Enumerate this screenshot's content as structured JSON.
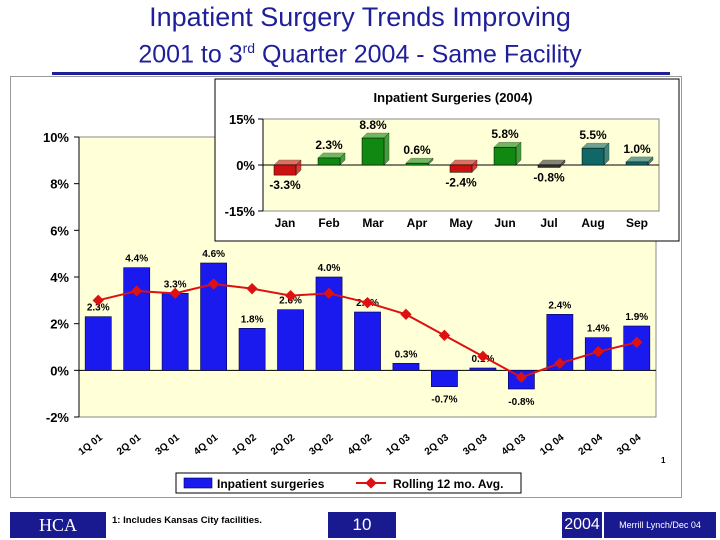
{
  "page": {
    "title": "Inpatient Surgery Trends Improving",
    "subtitle_pre": "2001 to 3",
    "subtitle_sup": "rd",
    "subtitle_post": " Quarter 2004 - Same Facility",
    "footnote": "1: Includes Kansas City facilities.",
    "footnote_marker": "1",
    "logo_text": "HCA",
    "page_number": "10",
    "year": "2004",
    "source": "Merrill Lynch/Dec 04"
  },
  "colors": {
    "title": "#1f1f9a",
    "bar": "#1a1aee",
    "line": "#dd1111",
    "plot_bg": "#ffffd8",
    "inset_red": "#cc1111",
    "inset_green": "#118811",
    "inset_teal": "#116666",
    "inset_dark": "#333333"
  },
  "chart_data": [
    {
      "type": "bar",
      "title": "",
      "categories": [
        "1Q 01",
        "2Q 01",
        "3Q 01",
        "4Q 01",
        "1Q 02",
        "2Q 02",
        "3Q 02",
        "4Q 02",
        "1Q 03",
        "2Q 03",
        "3Q 03",
        "4Q 03",
        "1Q 04",
        "2Q 04",
        "3Q 04"
      ],
      "series": [
        {
          "name": "Inpatient surgeries",
          "type": "bar",
          "values": [
            2.3,
            4.4,
            3.3,
            4.6,
            1.8,
            2.6,
            4.0,
            2.5,
            0.3,
            -0.7,
            0.1,
            -0.8,
            2.4,
            1.4,
            1.9
          ],
          "labels": [
            "2.3%",
            "4.4%",
            "3.3%",
            "4.6%",
            "1.8%",
            "2.6%",
            "4.0%",
            "2.5%",
            "0.3%",
            "-0.7%",
            "0.1%",
            "-0.8%",
            "2.4%",
            "1.4%",
            "1.9%"
          ]
        },
        {
          "name": "Rolling 12 mo. Avg.",
          "type": "line",
          "values": [
            3.0,
            3.4,
            3.3,
            3.7,
            3.5,
            3.2,
            3.3,
            2.9,
            2.4,
            1.5,
            0.6,
            -0.3,
            0.3,
            0.8,
            1.2
          ]
        }
      ],
      "yticks": [
        "10%",
        "8%",
        "6%",
        "4%",
        "2%",
        "0%",
        "-2%"
      ],
      "ylim": [
        -2,
        10
      ],
      "legend": "bottom"
    },
    {
      "type": "bar",
      "title": "Inpatient Surgeries (2004)",
      "categories": [
        "Jan",
        "Feb",
        "Mar",
        "Apr",
        "May",
        "Jun",
        "Jul",
        "Aug",
        "Sep"
      ],
      "values": [
        -3.3,
        2.3,
        8.8,
        0.6,
        -2.4,
        5.8,
        -0.8,
        5.5,
        1.0
      ],
      "labels": [
        "-3.3%",
        "2.3%",
        "8.8%",
        "0.6%",
        "-2.4%",
        "5.8%",
        "-0.8%",
        "5.5%",
        "1.0%"
      ],
      "yticks": [
        "15%",
        "0%",
        "-15%"
      ],
      "ylim": [
        -15,
        15
      ]
    }
  ]
}
